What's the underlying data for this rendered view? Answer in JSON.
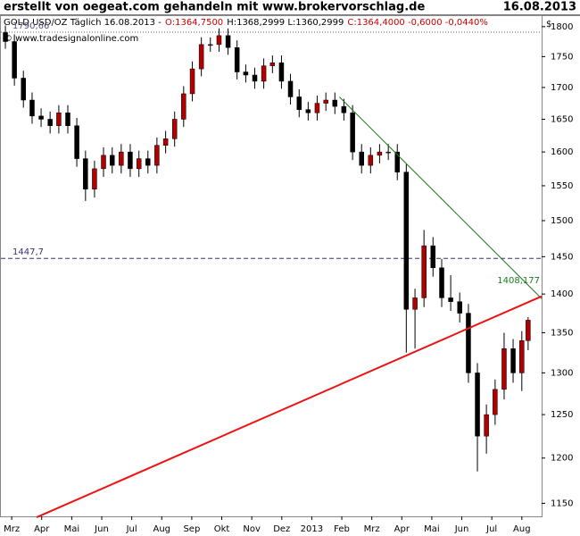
{
  "chart_data": {
    "type": "candlestick",
    "title": "erstellt von oegeat.com gehandeln mit www.brokervorschlag.de",
    "date": "16.08.2013",
    "info": [
      {
        "text": "GOLD USD/OZ Täglich  16.08.2013 -",
        "color": "#000000"
      },
      {
        "text": "O:1364,7500",
        "color": "#cc0000"
      },
      {
        "text": "H:1368,2999 L:1360,2999",
        "color": "#000000"
      },
      {
        "text": "C:1364,4000 -0,6000 -0,0440%",
        "color": "#cc0000"
      }
    ],
    "source": "© www.tradesignalonline.com",
    "y_unit": "$",
    "log_y": true,
    "up_color": "#b00000",
    "down_color": "#000000",
    "x": [
      -0.21,
      0.09,
      0.39,
      0.68,
      0.98,
      1.28,
      1.57,
      1.87,
      2.17,
      2.46,
      2.76,
      3.06,
      3.35,
      3.65,
      3.95,
      4.24,
      4.54,
      4.84,
      5.13,
      5.43,
      5.73,
      6.02,
      6.32,
      6.62,
      6.91,
      7.21,
      7.51,
      7.8,
      8.1,
      8.4,
      8.69,
      8.99,
      9.29,
      9.58,
      9.88,
      10.18,
      10.47,
      10.77,
      11.07,
      11.36,
      11.66,
      11.96,
      12.26,
      12.55,
      12.85,
      13.15,
      13.44,
      13.74,
      14.04,
      14.33,
      14.63,
      14.93,
      15.22,
      15.52,
      15.82,
      16.11,
      16.41,
      16.71,
      17.0,
      17.21
    ],
    "open": [
      1790,
      1775,
      1715,
      1680,
      1655,
      1650,
      1640,
      1660,
      1640,
      1590,
      1545,
      1575,
      1595,
      1580,
      1600,
      1575,
      1590,
      1580,
      1610,
      1620,
      1650,
      1690,
      1730,
      1770,
      1770,
      1785,
      1765,
      1725,
      1720,
      1710,
      1735,
      1740,
      1710,
      1685,
      1665,
      1660,
      1675,
      1680,
      1670,
      1660,
      1600,
      1580,
      1595,
      1600,
      1600,
      1570,
      1380,
      1395,
      1465,
      1435,
      1395,
      1390,
      1375,
      1300,
      1225,
      1250,
      1280,
      1330,
      1300,
      1340
    ],
    "high": [
      1802,
      1787,
      1727,
      1692,
      1667,
      1662,
      1672,
      1672,
      1652,
      1602,
      1587,
      1607,
      1607,
      1612,
      1612,
      1602,
      1602,
      1622,
      1632,
      1662,
      1702,
      1742,
      1782,
      1782,
      1797,
      1797,
      1777,
      1737,
      1732,
      1747,
      1752,
      1752,
      1722,
      1697,
      1677,
      1687,
      1692,
      1692,
      1682,
      1672,
      1612,
      1607,
      1612,
      1612,
      1612,
      1582,
      1407,
      1487,
      1477,
      1447,
      1425,
      1402,
      1387,
      1312,
      1262,
      1292,
      1350,
      1342,
      1352,
      1370
    ],
    "low": [
      1763,
      1703,
      1668,
      1643,
      1638,
      1628,
      1628,
      1628,
      1578,
      1528,
      1533,
      1563,
      1568,
      1568,
      1563,
      1563,
      1568,
      1568,
      1598,
      1608,
      1638,
      1678,
      1718,
      1758,
      1758,
      1753,
      1713,
      1708,
      1698,
      1698,
      1723,
      1698,
      1673,
      1653,
      1648,
      1648,
      1663,
      1658,
      1648,
      1588,
      1568,
      1568,
      1583,
      1588,
      1558,
      1325,
      1330,
      1383,
      1423,
      1383,
      1378,
      1363,
      1288,
      1185,
      1205,
      1238,
      1268,
      1288,
      1278,
      1328
    ],
    "close": [
      1775,
      1715,
      1680,
      1655,
      1650,
      1640,
      1660,
      1640,
      1590,
      1545,
      1575,
      1595,
      1580,
      1600,
      1575,
      1590,
      1580,
      1610,
      1620,
      1650,
      1690,
      1730,
      1770,
      1770,
      1785,
      1765,
      1725,
      1720,
      1710,
      1735,
      1740,
      1710,
      1685,
      1665,
      1660,
      1675,
      1680,
      1670,
      1660,
      1600,
      1580,
      1595,
      1600,
      1600,
      1570,
      1380,
      1395,
      1465,
      1435,
      1395,
      1390,
      1375,
      1300,
      1225,
      1250,
      1280,
      1330,
      1300,
      1340,
      1366
    ],
    "xlim": [
      -0.36,
      17.66
    ],
    "xticks": [
      {
        "value": 0,
        "label": "Mrz"
      },
      {
        "value": 1,
        "label": "Apr"
      },
      {
        "value": 2,
        "label": "Mai"
      },
      {
        "value": 3,
        "label": "Jun"
      },
      {
        "value": 4,
        "label": "Jul"
      },
      {
        "value": 5,
        "label": "Aug"
      },
      {
        "value": 6,
        "label": "Sep"
      },
      {
        "value": 7,
        "label": "Okt"
      },
      {
        "value": 8,
        "label": "Nov"
      },
      {
        "value": 9,
        "label": "Dez"
      },
      {
        "value": 10,
        "label": "2013"
      },
      {
        "value": 11,
        "label": "Feb"
      },
      {
        "value": 12,
        "label": "Mrz"
      },
      {
        "value": 13,
        "label": "Apr"
      },
      {
        "value": 14,
        "label": "Mai"
      },
      {
        "value": 15,
        "label": "Jun"
      },
      {
        "value": 16,
        "label": "Jul"
      },
      {
        "value": 17,
        "label": "Aug"
      }
    ],
    "ylim": [
      1136,
      1818
    ],
    "yticks": [
      1150,
      1200,
      1250,
      1300,
      1350,
      1400,
      1450,
      1500,
      1550,
      1600,
      1650,
      1700,
      1750,
      1800
    ],
    "hlines": [
      {
        "value": 1790.66,
        "label": "1790,66",
        "style": "dotted",
        "color": "#555577"
      },
      {
        "value": 1447.7,
        "label": "1447,7",
        "style": "dashed",
        "color": "#333366"
      }
    ],
    "trendlines": [
      {
        "color": "#1a7a1a",
        "width": 1,
        "x": [
          10.92,
          17.66
        ],
        "y": [
          1685,
          1394
        ],
        "label": {
          "value": 1408.177,
          "label": "1408,177"
        }
      },
      {
        "color": "#ee1111",
        "width": 2,
        "x": [
          0.83,
          17.66
        ],
        "y": [
          1135,
          1397
        ]
      }
    ]
  }
}
